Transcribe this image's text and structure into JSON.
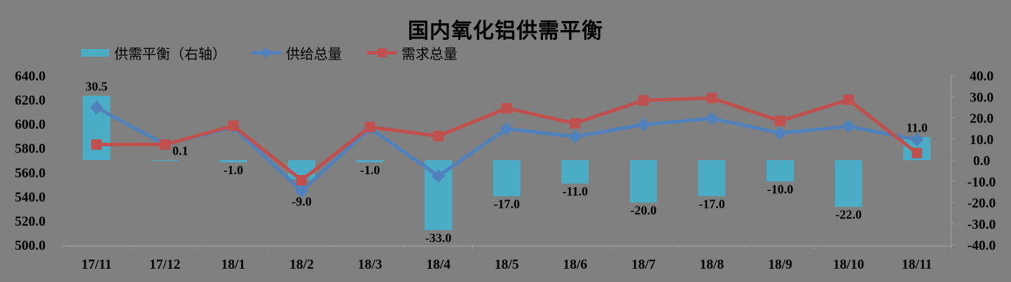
{
  "page": {
    "background": "#808080",
    "text_color": "#000000",
    "axis_color": "#9B9B9B"
  },
  "title": "国内氧化铝供需平衡",
  "legend": {
    "position": "top-left",
    "items": [
      {
        "label": "供需平衡（右轴）",
        "swatch": "bar-swatch-icon",
        "color": "#4BACC6"
      },
      {
        "label": "供给总量",
        "swatch": "line-diamond-swatch-icon",
        "color": "#4F81BD"
      },
      {
        "label": "需求总量",
        "swatch": "line-square-swatch-icon",
        "color": "#C0504D"
      }
    ]
  },
  "chart_data": {
    "type": "combo",
    "title": "国内氧化铝供需平衡",
    "grid": false,
    "legend_position": "top-left",
    "categories": [
      "17/11",
      "17/12",
      "18/1",
      "18/2",
      "18/3",
      "18/4",
      "18/5",
      "18/6",
      "18/7",
      "18/8",
      "18/9",
      "18/10",
      "18/11"
    ],
    "series": [
      {
        "name": "供需平衡（右轴）",
        "type": "bar",
        "axis": "right",
        "color": "#4BACC6",
        "values": [
          30.5,
          0.1,
          -1.0,
          -9.0,
          -1.0,
          -33.0,
          -17.0,
          -11.0,
          -20.0,
          -17.0,
          -10.0,
          -22.0,
          11.0
        ],
        "labels": [
          "30.5",
          "0.1",
          "-1.0",
          "-9.0",
          "-1.0",
          "-33.0",
          "-17.0",
          "-11.0",
          "-20.0",
          "-17.0",
          "-10.0",
          "-22.0",
          "11.0"
        ],
        "label_dx": [
          0,
          22,
          0,
          0,
          0,
          0,
          0,
          0,
          0,
          0,
          0,
          0,
          0
        ],
        "label_dy": [
          0,
          0,
          0,
          21,
          0,
          0,
          0,
          0,
          0,
          0,
          0,
          0,
          0
        ]
      },
      {
        "name": "供给总量",
        "type": "line",
        "marker": "diamond",
        "axis": "left",
        "color": "#4F81BD",
        "values": [
          613.5,
          583.1,
          597.5,
          544.5,
          596.5,
          557.0,
          596.0,
          589.5,
          599.5,
          604.5,
          592.5,
          598.0,
          587.0
        ]
      },
      {
        "name": "需求总量",
        "type": "line",
        "marker": "square",
        "axis": "left",
        "color": "#C0504D",
        "values": [
          583.0,
          583.0,
          598.5,
          553.5,
          597.5,
          590.0,
          613.0,
          600.5,
          619.5,
          621.5,
          602.5,
          620.0,
          576.0
        ]
      }
    ],
    "left_axis": {
      "min": 500,
      "max": 640,
      "step": 20,
      "ticks": [
        640,
        620,
        600,
        580,
        560,
        540,
        520,
        500
      ]
    },
    "right_axis": {
      "min": -40,
      "max": 40,
      "step": 10,
      "ticks": [
        40,
        30,
        20,
        10,
        0,
        -10,
        -20,
        -30,
        -40
      ]
    }
  }
}
